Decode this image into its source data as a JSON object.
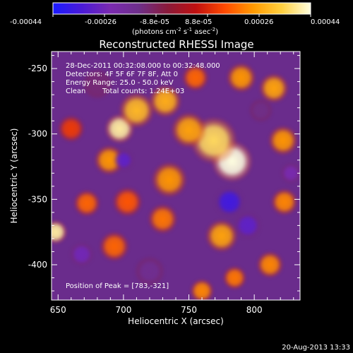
{
  "colorbar": {
    "ticks": [
      "-0.00044",
      "-0.00026",
      "-8.8e-05",
      "8.8e-05",
      "0.00026",
      "0.00044"
    ],
    "unit_prefix": "(photons cm",
    "unit_exp1": "-2",
    "unit_mid": " s",
    "unit_exp2": "-1",
    "unit_suffix": " asec",
    "unit_exp3": "-2",
    "unit_close": ")",
    "colors": [
      "#1a1aff",
      "#4a1ad8",
      "#7a2ab0",
      "#6e2f8a",
      "#8a1a3a",
      "#c01010",
      "#ff4a00",
      "#ff9a00",
      "#ffd040",
      "#ffffe0"
    ]
  },
  "chart_data": {
    "type": "heatmap",
    "title": "Reconstructed RHESSI Image",
    "xlabel": "Heliocentric X (arcsec)",
    "ylabel": "Heliocentric Y (arcsec)",
    "xlim": [
      645,
      835
    ],
    "ylim": [
      -427,
      -237
    ],
    "x_ticks": [
      650,
      700,
      750,
      800
    ],
    "x_tick_labels": [
      "650",
      "700",
      "750",
      "800"
    ],
    "y_ticks": [
      -250,
      -300,
      -350,
      -400
    ],
    "y_tick_labels": [
      "-250",
      "-300",
      "-350",
      "-400"
    ],
    "color_range": [
      -0.00044,
      0.00044
    ],
    "blobs": [
      {
        "x": 783,
        "y": -321,
        "value": 0.00044,
        "r": 14
      },
      {
        "x": 769,
        "y": -305,
        "value": 0.00036,
        "r": 16
      },
      {
        "x": 697,
        "y": -296,
        "value": 0.0004,
        "r": 10
      },
      {
        "x": 710,
        "y": -282,
        "value": 0.0003,
        "r": 12
      },
      {
        "x": 732,
        "y": -275,
        "value": 0.00028,
        "r": 11
      },
      {
        "x": 750,
        "y": -297,
        "value": 0.00026,
        "r": 12
      },
      {
        "x": 689,
        "y": -320,
        "value": 0.00024,
        "r": 10
      },
      {
        "x": 735,
        "y": -335,
        "value": 0.00024,
        "r": 12
      },
      {
        "x": 730,
        "y": -365,
        "value": 0.0002,
        "r": 10
      },
      {
        "x": 703,
        "y": -352,
        "value": 0.00016,
        "r": 10
      },
      {
        "x": 672,
        "y": -353,
        "value": 0.00018,
        "r": 9
      },
      {
        "x": 693,
        "y": -386,
        "value": 0.00018,
        "r": 10
      },
      {
        "x": 648,
        "y": -375,
        "value": 0.0004,
        "r": 8
      },
      {
        "x": 790,
        "y": -257,
        "value": 0.00024,
        "r": 10
      },
      {
        "x": 815,
        "y": -265,
        "value": 0.00026,
        "r": 10
      },
      {
        "x": 822,
        "y": -305,
        "value": 0.00024,
        "r": 10
      },
      {
        "x": 823,
        "y": -352,
        "value": 0.00022,
        "r": 9
      },
      {
        "x": 775,
        "y": -378,
        "value": 0.00026,
        "r": 11
      },
      {
        "x": 812,
        "y": -400,
        "value": 0.00022,
        "r": 9
      },
      {
        "x": 785,
        "y": -410,
        "value": 0.0002,
        "r": 8
      },
      {
        "x": 660,
        "y": -296,
        "value": 0.00012,
        "r": 9
      },
      {
        "x": 755,
        "y": -257,
        "value": 0.00018,
        "r": 9
      },
      {
        "x": 760,
        "y": -420,
        "value": 0.00022,
        "r": 8
      },
      {
        "x": 700,
        "y": -320,
        "value": -0.0003,
        "r": 7
      },
      {
        "x": 781,
        "y": -352,
        "value": -0.00036,
        "r": 10
      },
      {
        "x": 795,
        "y": -370,
        "value": -0.0003,
        "r": 9
      },
      {
        "x": 668,
        "y": -392,
        "value": -0.00026,
        "r": 8
      },
      {
        "x": 828,
        "y": -330,
        "value": -0.00024,
        "r": 7
      },
      {
        "x": 720,
        "y": -405,
        "value": -0.00016,
        "r": 10
      },
      {
        "x": 680,
        "y": -262,
        "value": -0.00012,
        "r": 10
      },
      {
        "x": 805,
        "y": -282,
        "value": -0.00014,
        "r": 8
      }
    ],
    "annotations": [
      "28-Dec-2011 00:32:08.000 to 00:32:48.000",
      "Detectors: 4F 5F 6F 7F 8F, Att 0",
      "Energy Range: 25.0 - 50.0 keV",
      "Clean",
      "Total counts: 1.24E+03",
      "Position of Peak = [783,-321]"
    ]
  },
  "footer": {
    "timestamp": "20-Aug-2013 13:33"
  }
}
